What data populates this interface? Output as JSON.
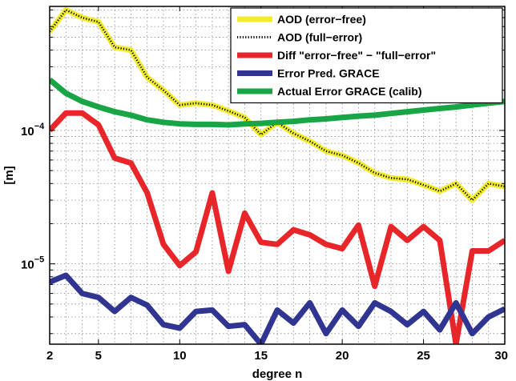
{
  "chart_data": {
    "type": "line",
    "title": "",
    "xlabel": "degree n",
    "ylabel": "[m]",
    "xlim": [
      2,
      30
    ],
    "ylim": [
      2.5e-06,
      0.00085
    ],
    "yscale": "log",
    "grid": true,
    "legend_position": "top-right",
    "x_ticks": [
      2,
      5,
      10,
      15,
      20,
      25,
      30
    ],
    "x_tick_labels": [
      "2",
      "5",
      "10",
      "15",
      "20",
      "25",
      "30"
    ],
    "y_tick_labels": [
      {
        "value": 0.0001,
        "base": "10",
        "exp": "−4"
      },
      {
        "value": 1e-05,
        "base": "10",
        "exp": "−5"
      }
    ],
    "x": [
      2,
      3,
      4,
      5,
      6,
      7,
      8,
      9,
      10,
      11,
      12,
      13,
      14,
      15,
      16,
      17,
      18,
      19,
      20,
      21,
      22,
      23,
      24,
      25,
      26,
      27,
      28,
      29,
      30
    ],
    "series": [
      {
        "name": "AOD (error−free)",
        "color": "#f2ec2e",
        "style": "solid",
        "values": [
          0.00055,
          0.0008,
          0.0007,
          0.00065,
          0.00042,
          0.0004,
          0.00025,
          0.0002,
          0.000155,
          0.00016,
          0.000155,
          0.00014,
          0.000125,
          9.3e-05,
          0.000115,
          9.5e-05,
          8.3e-05,
          7e-05,
          6.5e-05,
          5.7e-05,
          4.8e-05,
          4.4e-05,
          4.3e-05,
          3.9e-05,
          3.5e-05,
          4e-05,
          3e-05,
          4e-05,
          3.8e-05
        ]
      },
      {
        "name": "AOD (full−error)",
        "color": "#000000",
        "style": "dotted",
        "values": [
          0.00055,
          0.0008,
          0.0007,
          0.00065,
          0.00042,
          0.0004,
          0.00025,
          0.0002,
          0.000155,
          0.00016,
          0.000155,
          0.00014,
          0.000125,
          9.3e-05,
          0.000115,
          9.5e-05,
          8.3e-05,
          7e-05,
          6.5e-05,
          5.7e-05,
          4.8e-05,
          4.4e-05,
          4.3e-05,
          3.9e-05,
          3.5e-05,
          4e-05,
          3e-05,
          4e-05,
          3.8e-05
        ]
      },
      {
        "name": "Diff \"error−free\" − \"full−error\"",
        "color": "#e8262a",
        "style": "solid",
        "values": [
          0.0001,
          0.000135,
          0.000135,
          0.00011,
          6.2e-05,
          5.7e-05,
          3.4e-05,
          1.4e-05,
          9.7e-06,
          1.23e-05,
          3.4e-05,
          8.8e-06,
          2.4e-05,
          1.45e-05,
          1.4e-05,
          1.8e-05,
          1.65e-05,
          1.4e-05,
          1.3e-05,
          1.95e-05,
          6.8e-06,
          1.9e-05,
          1.5e-05,
          1.9e-05,
          1.5e-05,
          2.5e-06,
          1.25e-05,
          1.25e-05,
          1.5e-05
        ]
      },
      {
        "name": "Error Pred. GRACE",
        "color": "#2f3591",
        "style": "solid",
        "values": [
          7.3e-06,
          8.2e-06,
          6e-06,
          5.6e-06,
          4.4e-06,
          5.6e-06,
          4.9e-06,
          3.5e-06,
          3.3e-06,
          4.4e-06,
          4.5e-06,
          3.4e-06,
          3.5e-06,
          2.5e-06,
          4.5e-06,
          3.6e-06,
          5.1e-06,
          3e-06,
          4.5e-06,
          3.4e-06,
          5.1e-06,
          4.4e-06,
          3.5e-06,
          4.4e-06,
          3.2e-06,
          5.1e-06,
          3e-06,
          4e-06,
          4.6e-06
        ]
      },
      {
        "name": "Actual Error GRACE (calib)",
        "color": "#17a546",
        "style": "solid",
        "values": [
          0.00024,
          0.00019,
          0.000165,
          0.00015,
          0.000138,
          0.00013,
          0.00012,
          0.000115,
          0.000112,
          0.000111,
          0.000111,
          0.00011,
          0.000112,
          0.000113,
          0.000115,
          0.000117,
          0.00012,
          0.000122,
          0.000125,
          0.000128,
          0.00013,
          0.000134,
          0.000138,
          0.000142,
          0.000146,
          0.00015,
          0.000155,
          0.00016,
          0.000165
        ]
      }
    ]
  }
}
